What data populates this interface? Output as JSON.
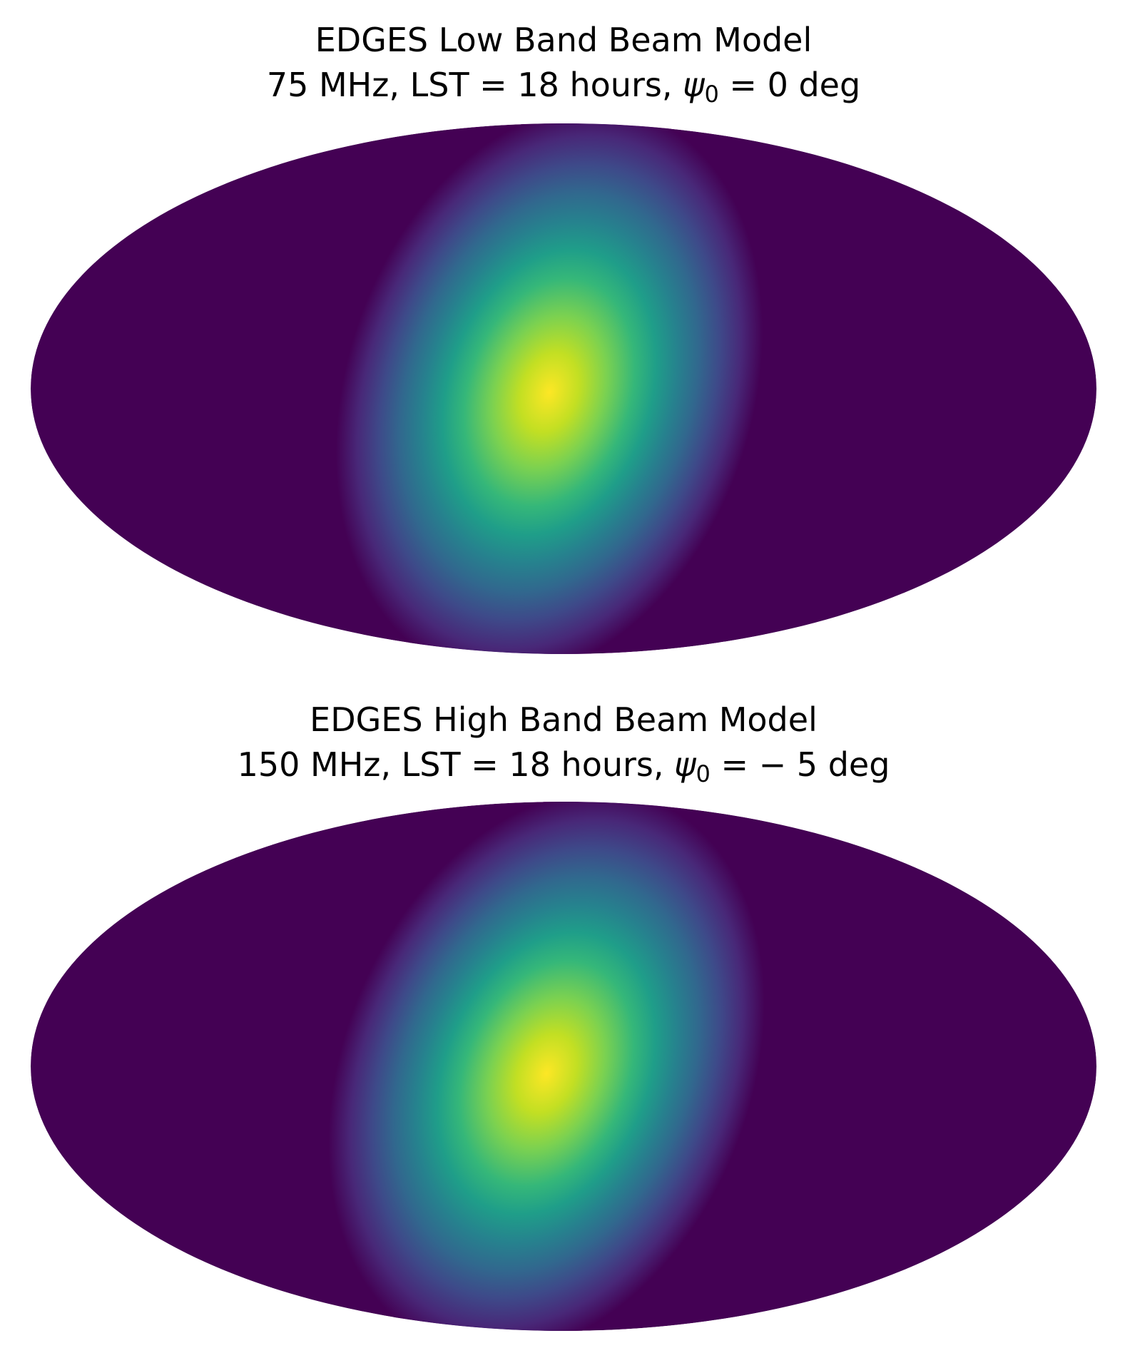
{
  "figure": {
    "panels": [
      {
        "title": "EDGES Low Band Beam Model",
        "subtitle": {
          "prefix": "75 MHz, LST = 18 hours, ",
          "symbol": "ψ",
          "subscript": "0",
          "suffix": " = 0 deg"
        }
      },
      {
        "title": "EDGES High Band Beam Model",
        "subtitle": {
          "prefix": "150 MHz, LST = 18 hours, ",
          "symbol": "ψ",
          "subscript": "0",
          "suffix": " = − 5 deg"
        }
      }
    ]
  }
}
